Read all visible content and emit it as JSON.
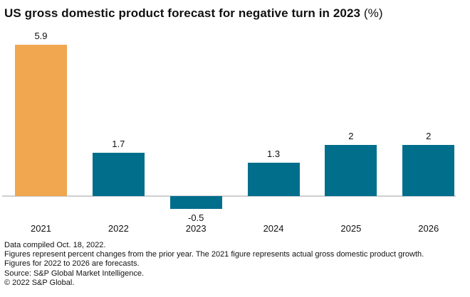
{
  "title": {
    "main": "US gross domestic product forecast for negative turn in 2023",
    "suffix": " (%)"
  },
  "chart_data": {
    "type": "bar",
    "title": "US gross domestic product forecast for negative turn in 2023 (%)",
    "xlabel": "",
    "ylabel": "",
    "categories": [
      "2021",
      "2022",
      "2023",
      "2024",
      "2025",
      "2026"
    ],
    "values": [
      5.9,
      1.7,
      -0.5,
      1.3,
      2,
      2
    ],
    "value_labels": [
      "5.9",
      "1.7",
      "-0.5",
      "1.3",
      "2",
      "2"
    ],
    "series_roles": [
      "actual",
      "forecast",
      "forecast",
      "forecast",
      "forecast",
      "forecast"
    ],
    "colors": {
      "actual": "#F0A750",
      "forecast": "#016E8C",
      "axis_line": "#cfcfd2",
      "text": "#111111"
    },
    "ylim": [
      -1,
      6
    ],
    "grid": false,
    "legend": null,
    "baseline": 0
  },
  "footnotes": [
    "Data compiled Oct. 18, 2022.",
    "Figures represent percent changes from the prior year. The 2021 figure represents actual gross domestic product growth.",
    "Figures for 2022 to 2026 are forecasts.",
    "Source: S&P Global Market Intelligence.",
    "© 2022 S&P Global."
  ]
}
